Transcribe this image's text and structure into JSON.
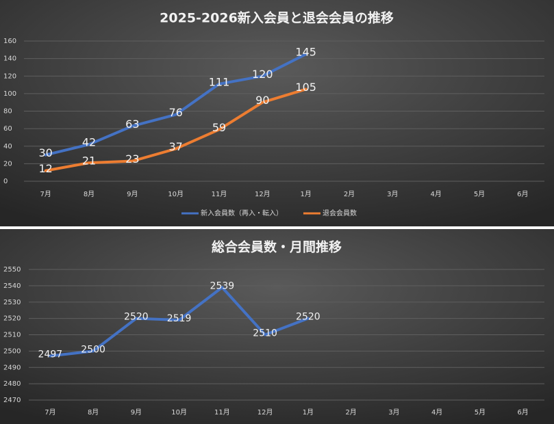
{
  "chart_data": [
    {
      "type": "line",
      "title": "2025-2026新入会員と退会会員の推移",
      "categories": [
        "7月",
        "8月",
        "9月",
        "10月",
        "11月",
        "12月",
        "1月",
        "2月",
        "3月",
        "4月",
        "5月",
        "6月"
      ],
      "series": [
        {
          "name": "新入会員数（再入・転入）",
          "color": "#4472c4",
          "values": [
            30,
            42,
            63,
            76,
            111,
            120,
            145,
            null,
            null,
            null,
            null,
            null
          ]
        },
        {
          "name": "退会会員数",
          "color": "#ed7d31",
          "values": [
            12,
            21,
            23,
            37,
            59,
            90,
            105,
            null,
            null,
            null,
            null,
            null
          ]
        }
      ],
      "ylim": [
        0,
        160
      ],
      "yticks": [
        0,
        20,
        40,
        60,
        80,
        100,
        120,
        140,
        160
      ],
      "grid": true,
      "legend": "bottom",
      "data_labels": true
    },
    {
      "type": "line",
      "title": "総合会員数・月間推移",
      "categories": [
        "7月",
        "8月",
        "9月",
        "10月",
        "11月",
        "12月",
        "1月",
        "2月",
        "3月",
        "4月",
        "5月",
        "6月"
      ],
      "values": [
        2497,
        2500,
        2520,
        2519,
        2539,
        2510,
        2520,
        null,
        null,
        null,
        null,
        null
      ],
      "color": "#4472c4",
      "ylim": [
        2470,
        2550
      ],
      "yticks": [
        2470,
        2480,
        2490,
        2500,
        2510,
        2520,
        2530,
        2540,
        2550
      ],
      "grid": true,
      "data_labels": true
    }
  ]
}
